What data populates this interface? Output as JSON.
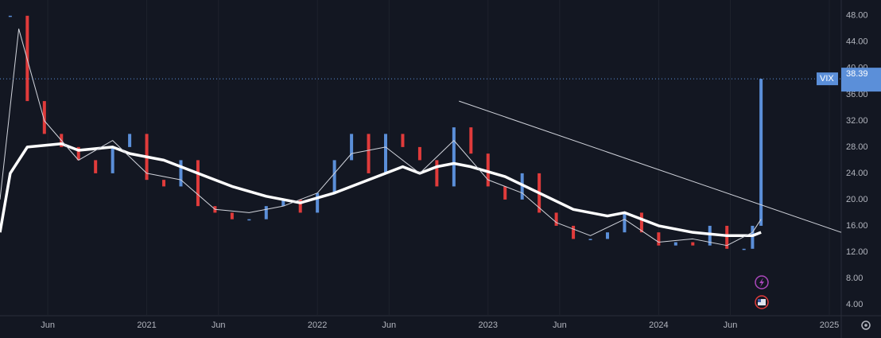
{
  "chart_data": {
    "type": "candlestick",
    "xlim": [
      2020.14,
      2025.07
    ],
    "ylim": [
      2.3,
      50.4
    ],
    "xticks": [
      {
        "value": 2020.42,
        "label": "Jun"
      },
      {
        "value": 2021.0,
        "label": "2021"
      },
      {
        "value": 2021.42,
        "label": "Jun"
      },
      {
        "value": 2022.0,
        "label": "2022"
      },
      {
        "value": 2022.42,
        "label": "Jun"
      },
      {
        "value": 2023.0,
        "label": "2023"
      },
      {
        "value": 2023.42,
        "label": "Jun"
      },
      {
        "value": 2024.0,
        "label": "2024"
      },
      {
        "value": 2024.42,
        "label": "Jun"
      },
      {
        "value": 2025.0,
        "label": "2025"
      }
    ],
    "yticks": [
      {
        "value": 4,
        "label": "4.00"
      },
      {
        "value": 8,
        "label": "8.00"
      },
      {
        "value": 12,
        "label": "12.00"
      },
      {
        "value": 16,
        "label": "16.00"
      },
      {
        "value": 20,
        "label": "20.00"
      },
      {
        "value": 24,
        "label": "24.00"
      },
      {
        "value": 28,
        "label": "28.00"
      },
      {
        "value": 32,
        "label": "32.00"
      },
      {
        "value": 36,
        "label": "36.00"
      },
      {
        "value": 40,
        "label": "40.00"
      },
      {
        "value": 44,
        "label": "44.00"
      },
      {
        "value": 48,
        "label": "48.00"
      }
    ],
    "grid": true,
    "up_color": "#5b8fd9",
    "down_color": "#e03b3b",
    "series": [
      {
        "name": "VIX",
        "x": [
          2020.2,
          2020.3,
          2020.4,
          2020.5,
          2020.6,
          2020.7,
          2020.8,
          2020.9,
          2021.0,
          2021.1,
          2021.2,
          2021.3,
          2021.4,
          2021.5,
          2021.6,
          2021.7,
          2021.8,
          2021.9,
          2022.0,
          2022.1,
          2022.2,
          2022.3,
          2022.4,
          2022.5,
          2022.6,
          2022.7,
          2022.8,
          2022.9,
          2023.0,
          2023.1,
          2023.2,
          2023.3,
          2023.4,
          2023.5,
          2023.6,
          2023.7,
          2023.8,
          2023.9,
          2024.0,
          2024.1,
          2024.2,
          2024.3,
          2024.4,
          2024.5,
          2024.55,
          2024.6
        ],
        "values": [
          48,
          35,
          30,
          28,
          26,
          24,
          28,
          30,
          23,
          22,
          26,
          19,
          18,
          17,
          17,
          19,
          20,
          18,
          21,
          26,
          30,
          24,
          30,
          28,
          26,
          22,
          31,
          27,
          22,
          20,
          24,
          18,
          16,
          14,
          14,
          15,
          18,
          15,
          13,
          13.5,
          13,
          16,
          12.5,
          12.5,
          16,
          38.39
        ]
      },
      {
        "color": "#ffffff",
        "width": 3.5,
        "x": [
          2020.14,
          2020.2,
          2020.3,
          2020.5,
          2020.6,
          2020.8,
          2020.9,
          2021.1,
          2021.3,
          2021.5,
          2021.7,
          2021.9,
          2022.1,
          2022.3,
          2022.5,
          2022.6,
          2022.7,
          2022.8,
          2022.9,
          2023.1,
          2023.3,
          2023.5,
          2023.7,
          2023.8,
          2024.0,
          2024.2,
          2024.4,
          2024.55,
          2024.6
        ],
        "values": [
          15,
          24,
          28,
          28.5,
          27.5,
          28,
          27,
          26,
          24,
          22,
          20.5,
          19.5,
          21,
          23,
          25,
          24,
          25,
          25.5,
          25,
          23.5,
          21,
          18.5,
          17.5,
          18,
          16,
          15,
          14.5,
          14.5,
          15
        ]
      },
      {
        "color": "#d1d4dc",
        "width": 1,
        "x": [
          2020.14,
          2020.25,
          2020.4,
          2020.6,
          2020.8,
          2021.0,
          2021.2,
          2021.4,
          2021.6,
          2021.8,
          2022.0,
          2022.2,
          2022.4,
          2022.6,
          2022.8,
          2023.0,
          2023.2,
          2023.4,
          2023.6,
          2023.8,
          2024.0,
          2024.2,
          2024.4,
          2024.55,
          2024.6
        ],
        "values": [
          20,
          46,
          32,
          26,
          29,
          24,
          23,
          18.5,
          18,
          19,
          21,
          27,
          28,
          24,
          29,
          23,
          21,
          16.5,
          14.5,
          17,
          13.5,
          14,
          13,
          15,
          17
        ]
      }
    ],
    "trendline": {
      "color": "#d1d4dc",
      "x": [
        2022.83,
        2025.07
      ],
      "values": [
        35,
        15
      ]
    }
  }
}
